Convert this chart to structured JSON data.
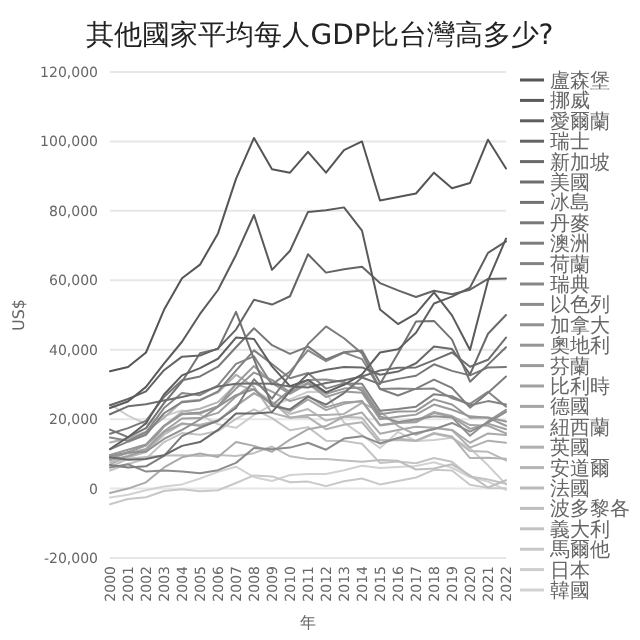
{
  "chart_data": {
    "type": "line",
    "title": "其他國家平均每人GDP比台灣高多少?",
    "xlabel": "年",
    "ylabel": "US$",
    "categories": [
      "2000",
      "2001",
      "2002",
      "2003",
      "2004",
      "2005",
      "2006",
      "2007",
      "2008",
      "2009",
      "2010",
      "2011",
      "2012",
      "2013",
      "2014",
      "2015",
      "2016",
      "2017",
      "2018",
      "2019",
      "2020",
      "2021",
      "2022"
    ],
    "ylim": [
      -20000,
      120000
    ],
    "yticks": [
      {
        "value": -20000,
        "label": "-20,000"
      },
      {
        "value": 0,
        "label": "0"
      },
      {
        "value": 20000,
        "label": "20,000"
      },
      {
        "value": 40000,
        "label": "40,000"
      },
      {
        "value": 60000,
        "label": "60,000"
      },
      {
        "value": 80000,
        "label": "80,000"
      },
      {
        "value": 100000,
        "label": "100,000"
      },
      {
        "value": 120000,
        "label": "120,000"
      }
    ],
    "grid": "y",
    "legend": "right",
    "series": [
      {
        "name": "盧森堡",
        "color": "#555555",
        "values": [
          33800,
          35000,
          39200,
          51500,
          60600,
          64500,
          73500,
          89200,
          101000,
          92000,
          91000,
          97000,
          91000,
          97500,
          100000,
          83000,
          84000,
          85000,
          91000,
          86500,
          88000,
          100500,
          92200
        ]
      },
      {
        "name": "挪威",
        "color": "#5a5a5a",
        "values": [
          23200,
          25100,
          29300,
          36000,
          42300,
          50300,
          57200,
          67300,
          78800,
          63000,
          68500,
          79700,
          80200,
          81000,
          74300,
          51600,
          47400,
          50400,
          56500,
          49900,
          39900,
          59900,
          72000
        ]
      },
      {
        "name": "愛爾蘭",
        "color": "#5f5f5f",
        "values": [
          11400,
          14800,
          18800,
          27100,
          32600,
          34700,
          37400,
          43500,
          43100,
          35200,
          29500,
          31300,
          27700,
          29900,
          32900,
          39200,
          40100,
          44900,
          53300,
          55300,
          57900,
          67900,
          71200
        ]
      },
      {
        "name": "瑞士",
        "color": "#646464",
        "values": [
          24000,
          25800,
          28000,
          34100,
          38000,
          38300,
          40400,
          45800,
          54400,
          53000,
          55400,
          67500,
          62200,
          63200,
          63900,
          59200,
          57100,
          55200,
          57000,
          56000,
          57300,
          60400,
          60500
        ]
      },
      {
        "name": "新加坡",
        "color": "#696969",
        "values": [
          9000,
          8300,
          8500,
          9600,
          12300,
          13400,
          16900,
          21600,
          21600,
          22000,
          28000,
          33000,
          34200,
          35000,
          34900,
          32800,
          33700,
          36100,
          40900,
          40200,
          32900,
          44600,
          50000
        ]
      },
      {
        "name": "美國",
        "color": "#6e6e6e",
        "values": [
          21400,
          23700,
          24300,
          25400,
          26400,
          27600,
          29400,
          30200,
          30300,
          30200,
          29400,
          29100,
          30400,
          31200,
          32300,
          34000,
          34800,
          34900,
          37000,
          39200,
          35100,
          37100,
          43500
        ]
      },
      {
        "name": "冰島",
        "color": "#737373",
        "values": [
          17000,
          14800,
          17400,
          24600,
          30800,
          39000,
          40200,
          50900,
          37300,
          23800,
          22800,
          26500,
          24200,
          27500,
          32000,
          30100,
          38900,
          48100,
          48300,
          42900,
          30800,
          35700,
          40700
        ]
      },
      {
        "name": "丹麥",
        "color": "#787878",
        "values": [
          15800,
          17400,
          19500,
          26400,
          31200,
          32300,
          35100,
          40700,
          46200,
          41300,
          38800,
          40900,
          37200,
          39300,
          39800,
          30500,
          31600,
          32500,
          35800,
          33900,
          32600,
          34900,
          35000
        ]
      },
      {
        "name": "澳洲",
        "color": "#7d7d7d",
        "values": [
          6800,
          6100,
          6400,
          9400,
          15100,
          17500,
          19600,
          23200,
          31500,
          25900,
          32800,
          41600,
          46700,
          43300,
          38900,
          28700,
          26800,
          28800,
          31400,
          29000,
          23300,
          27600,
          32300
        ]
      },
      {
        "name": "荷蘭",
        "color": "#828282",
        "values": [
          11300,
          13500,
          15500,
          21700,
          24900,
          25400,
          28000,
          34000,
          39800,
          35900,
          31800,
          33300,
          28800,
          30300,
          30200,
          22400,
          22900,
          23600,
          27200,
          26600,
          24000,
          25200,
          24200
        ]
      },
      {
        "name": "瑞典",
        "color": "#878787",
        "values": [
          14700,
          13800,
          16200,
          23200,
          27500,
          26900,
          29700,
          35900,
          38100,
          30000,
          33700,
          39800,
          36700,
          39200,
          37300,
          28700,
          28800,
          28700,
          28800,
          26000,
          24400,
          27900,
          23600
        ]
      },
      {
        "name": "以色列",
        "color": "#8c8c8c",
        "values": [
          6100,
          7000,
          4900,
          5200,
          4900,
          4400,
          5300,
          7400,
          11700,
          11300,
          11800,
          13200,
          11200,
          14400,
          15100,
          13000,
          14600,
          16000,
          17100,
          18900,
          16400,
          19000,
          22100
        ]
      },
      {
        "name": "加拿大",
        "color": "#919191",
        "values": [
          9400,
          10400,
          10600,
          14300,
          16900,
          19900,
          23600,
          26900,
          28600,
          24000,
          28400,
          31300,
          31400,
          30700,
          28200,
          20800,
          19200,
          20000,
          20800,
          20500,
          15200,
          19400,
          22700
        ]
      },
      {
        "name": "奧地利",
        "color": "#969696",
        "values": [
          9700,
          11200,
          12700,
          18100,
          21500,
          21900,
          23600,
          28800,
          33400,
          31300,
          27700,
          30500,
          27300,
          28800,
          29100,
          21400,
          22200,
          22300,
          25700,
          24200,
          20400,
          20500,
          19300
        ]
      },
      {
        "name": "芬蘭",
        "color": "#9b9b9b",
        "values": [
          8600,
          10500,
          12400,
          17900,
          21400,
          21600,
          23700,
          30100,
          35300,
          30400,
          27300,
          30200,
          26400,
          28000,
          27600,
          20000,
          20700,
          21300,
          24200,
          22700,
          20800,
          20400,
          18100
        ]
      },
      {
        "name": "比利時",
        "color": "#a0a0a0",
        "values": [
          8200,
          9400,
          11100,
          16500,
          20200,
          20300,
          21800,
          26500,
          30400,
          27900,
          25200,
          26700,
          23400,
          24900,
          25100,
          18200,
          18900,
          19100,
          21800,
          20700,
          17200,
          18700,
          17100
        ]
      },
      {
        "name": "德國",
        "color": "#a5a5a5",
        "values": [
          8700,
          10200,
          11400,
          16200,
          18800,
          18000,
          19400,
          23800,
          27500,
          24700,
          22300,
          25700,
          22600,
          24400,
          25300,
          18300,
          19000,
          19500,
          22100,
          20900,
          18300,
          18100,
          15900
        ]
      },
      {
        "name": "紐西蘭",
        "color": "#aaaaaa",
        "values": [
          -1300,
          0,
          1800,
          6100,
          9000,
          10100,
          9100,
          13400,
          12300,
          10600,
          14100,
          17100,
          18000,
          20700,
          21900,
          15800,
          16900,
          17800,
          17500,
          16900,
          13200,
          15900,
          15400
        ]
      },
      {
        "name": "英國",
        "color": "#afafaf",
        "values": [
          13300,
          14400,
          16400,
          20400,
          25100,
          25600,
          27700,
          32800,
          29300,
          21800,
          20400,
          21200,
          21200,
          21500,
          24700,
          22200,
          18000,
          15500,
          17500,
          16800,
          11800,
          13800,
          13200
        ]
      },
      {
        "name": "安道爾",
        "color": "#b4b4b4",
        "values": [
          6900,
          9200,
          11000,
          18000,
          22100,
          23000,
          24900,
          30000,
          28500,
          25000,
          20500,
          20600,
          17100,
          18400,
          19100,
          13000,
          14400,
          13800,
          16000,
          15000,
          8800,
          8900,
          8600
        ]
      },
      {
        "name": "法國",
        "color": "#b9b9b9",
        "values": [
          7500,
          9000,
          10500,
          15500,
          18600,
          18400,
          19600,
          23800,
          27400,
          24800,
          21500,
          22900,
          19600,
          20700,
          20400,
          13900,
          14000,
          13700,
          15800,
          14700,
          10800,
          10600,
          8100
        ]
      },
      {
        "name": "波多黎各",
        "color": "#bebebe",
        "values": [
          6100,
          8600,
          9100,
          9500,
          9600,
          9400,
          9700,
          9400,
          10200,
          12100,
          9300,
          8500,
          8500,
          8100,
          7700,
          8200,
          8000,
          5500,
          5800,
          7000,
          3800,
          300,
          2400
        ]
      },
      {
        "name": "義大利",
        "color": "#c3c3c3",
        "values": [
          5200,
          7100,
          8600,
          13400,
          16000,
          15500,
          16600,
          20100,
          22800,
          20300,
          16800,
          17700,
          13800,
          13700,
          12900,
          7400,
          7800,
          7300,
          8800,
          7700,
          3500,
          2600,
          1400
        ]
      },
      {
        "name": "馬爾他",
        "color": "#c8c8c8",
        "values": [
          -4500,
          -3000,
          -2500,
          -700,
          -200,
          -800,
          -500,
          1600,
          3800,
          3500,
          1800,
          2000,
          700,
          2100,
          2900,
          1200,
          2200,
          3200,
          5400,
          5200,
          1100,
          200,
          100
        ]
      },
      {
        "name": "日本",
        "color": "#cdcdcd",
        "values": [
          24300,
          21000,
          18600,
          20900,
          22500,
          21300,
          18500,
          17500,
          21200,
          24100,
          25700,
          27900,
          27800,
          19000,
          15400,
          11700,
          16300,
          13700,
          14000,
          14600,
          11600,
          6700,
          1200
        ]
      },
      {
        "name": "韓國",
        "color": "#d2d2d2",
        "values": [
          -2600,
          -1800,
          -500,
          600,
          1200,
          2900,
          4800,
          6300,
          3300,
          2200,
          3900,
          4200,
          4200,
          5300,
          6600,
          5900,
          6200,
          6500,
          7600,
          6000,
          3300,
          2000,
          -400
        ]
      }
    ]
  }
}
